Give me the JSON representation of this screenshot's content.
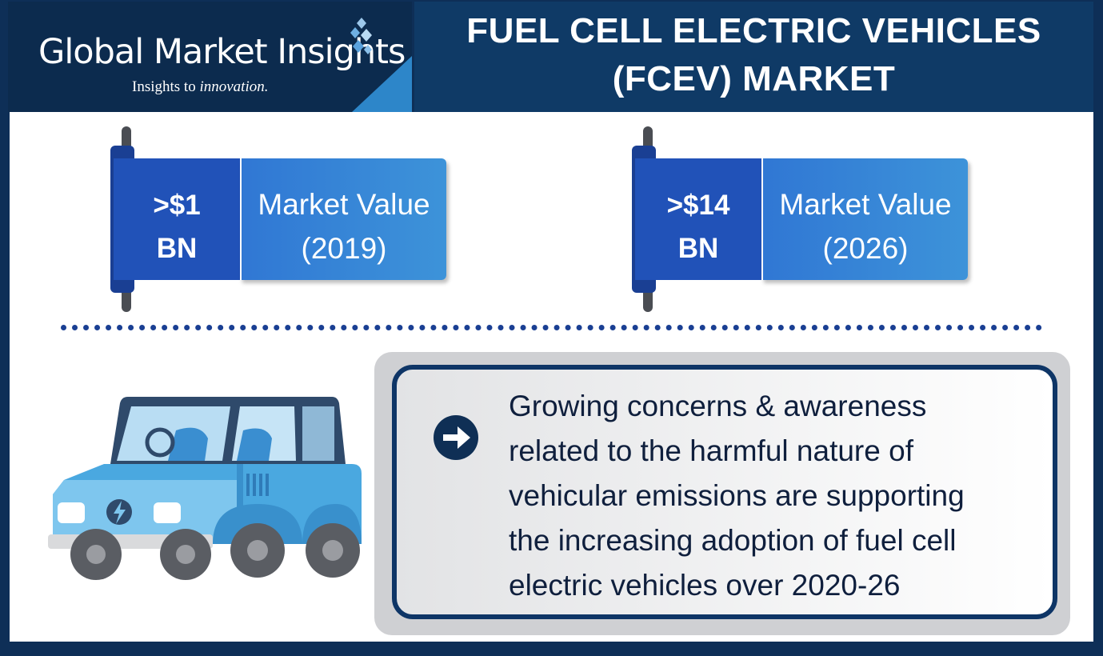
{
  "header": {
    "brand": "Global Market Insights",
    "tagline_prefix": "Insights to ",
    "tagline_emphasis": "innovation.",
    "title_line1": "FUEL CELL ELECTRIC VEHICLES",
    "title_line2": "(FCEV) MARKET"
  },
  "stats": [
    {
      "value_line1": ">$1",
      "value_line2": "BN",
      "label_line1": "Market Value",
      "label_line2": "(2019)"
    },
    {
      "value_line1": ">$14",
      "value_line2": "BN",
      "label_line1": "Market Value",
      "label_line2": "(2026)"
    }
  ],
  "message": {
    "icon": "arrow-right-circle-icon",
    "lines": [
      "Growing concerns & awareness",
      "related to the harmful nature of",
      "vehicular emissions are supporting",
      "the increasing adoption of fuel cell",
      "electric vehicles over 2020-26"
    ]
  },
  "illustration": {
    "icon": "electric-car-icon"
  },
  "colors": {
    "frame": "#0e2f57",
    "title_panel": "#0f3a66",
    "banner_dark": "#2152b8",
    "banner_light": "#3d93d9",
    "divider": "#1a3f93",
    "car_body": "#4aa8e0"
  }
}
